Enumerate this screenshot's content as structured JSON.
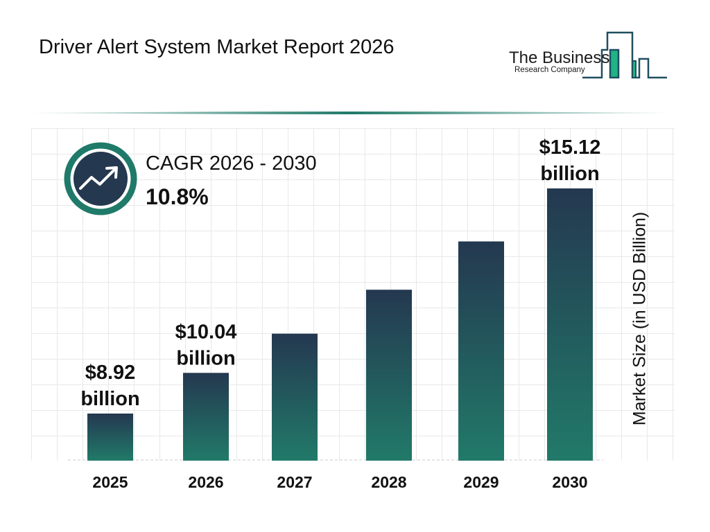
{
  "header": {
    "title": "Driver Alert System Market Report 2026"
  },
  "logo": {
    "line1": "The Business",
    "line2": "Research Company",
    "colors": {
      "dark": "#1f4e5f",
      "green": "#1fb386"
    }
  },
  "cagr": {
    "label": "CAGR 2026 - 2030",
    "value": "10.8%",
    "icon": "trending-up-icon"
  },
  "chart_data": {
    "type": "bar",
    "title": "",
    "xlabel": "",
    "ylabel": "Market Size (in USD Billion)",
    "categories": [
      "2025",
      "2026",
      "2027",
      "2028",
      "2029",
      "2030"
    ],
    "values": [
      8.92,
      10.04,
      11.12,
      12.33,
      13.66,
      15.12
    ],
    "data_labels": [
      "$8.92 billion",
      "$10.04 billion",
      "",
      "",
      "",
      "$15.12 billion"
    ],
    "grid": true,
    "colors": {
      "bar_top": "#243850",
      "bar_bottom": "#217a69"
    }
  }
}
